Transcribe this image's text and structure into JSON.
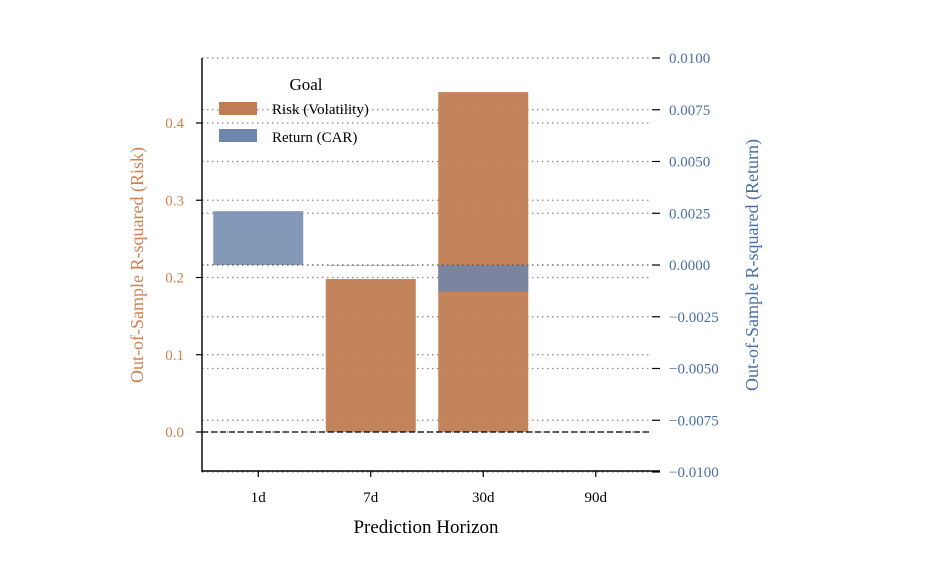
{
  "chart_data": {
    "type": "bar",
    "categories": [
      "1d",
      "7d",
      "30d",
      "90d"
    ],
    "xlabel": "Prediction Horizon",
    "series": [
      {
        "name": "Risk (Volatility)",
        "axis": "left",
        "color": "#c07c52",
        "values": [
          0.0,
          0.198,
          0.44,
          null
        ]
      },
      {
        "name": "Return (CAR)",
        "axis": "right",
        "color": "#6f86ac",
        "values": [
          0.0026,
          0.0,
          -0.0013,
          null
        ]
      }
    ],
    "left_axis": {
      "label": "Out-of-Sample R-squared (Risk)",
      "ylim": [
        -0.05,
        0.46
      ],
      "ticks": [
        0.0,
        0.1,
        0.2,
        0.3,
        0.4
      ],
      "tick_labels": [
        "0.0",
        "0.1",
        "0.2",
        "0.3",
        "0.4"
      ],
      "color": "#d08050"
    },
    "right_axis": {
      "label": "Out-of-Sample R-squared (Return)",
      "ylim": [
        -0.01,
        0.01
      ],
      "ticks": [
        -0.01,
        -0.0075,
        -0.005,
        -0.0025,
        0.0,
        0.0025,
        0.005,
        0.0075,
        0.01
      ],
      "tick_labels": [
        "−0.0100",
        "−0.0075",
        "−0.0050",
        "−0.0025",
        "0.0000",
        "0.0025",
        "0.0050",
        "0.0075",
        "0.0100"
      ],
      "color": "#4a6fa5"
    },
    "legend": {
      "title": "Goal",
      "position": "top-left"
    },
    "grid": {
      "horizontal": true,
      "style": "dotted"
    },
    "zero_line": {
      "style": "dashed"
    }
  }
}
